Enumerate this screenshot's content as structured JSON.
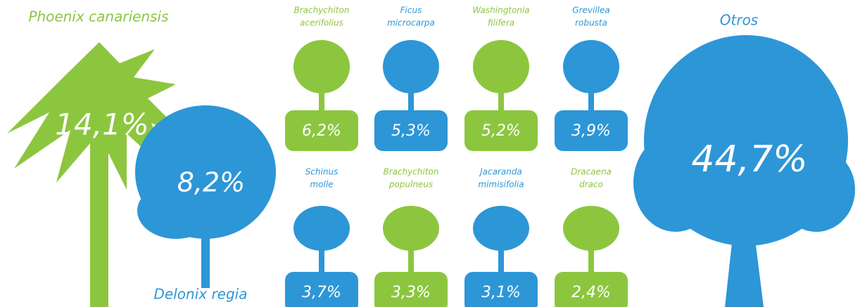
{
  "featured": [
    {
      "name": "Phoenix canariensis",
      "percent": "14,1%"
    },
    {
      "name": "Delonix regia",
      "percent": "8,2%"
    },
    {
      "name": "Otros",
      "percent": "44,7%"
    }
  ],
  "grid": [
    {
      "name": [
        "Brachychiton",
        "acerifolius"
      ],
      "percent": "6,2%"
    },
    {
      "name": [
        "Ficus",
        "microcarpa"
      ],
      "percent": "5,3%"
    },
    {
      "name": [
        "Washingtonia",
        "filifera"
      ],
      "percent": "5,2%"
    },
    {
      "name": [
        "Grevillea",
        "robusta"
      ],
      "percent": "3,9%"
    },
    {
      "name": [
        "Schinus",
        "molle"
      ],
      "percent": "3,7%"
    },
    {
      "name": [
        "Brachychiton",
        "populneus"
      ],
      "percent": "3,3%"
    },
    {
      "name": [
        "Jacaranda",
        "mimisifolia"
      ],
      "percent": "3,1%"
    },
    {
      "name": [
        "Dracaena",
        "draco"
      ],
      "percent": "2,4%"
    }
  ]
}
